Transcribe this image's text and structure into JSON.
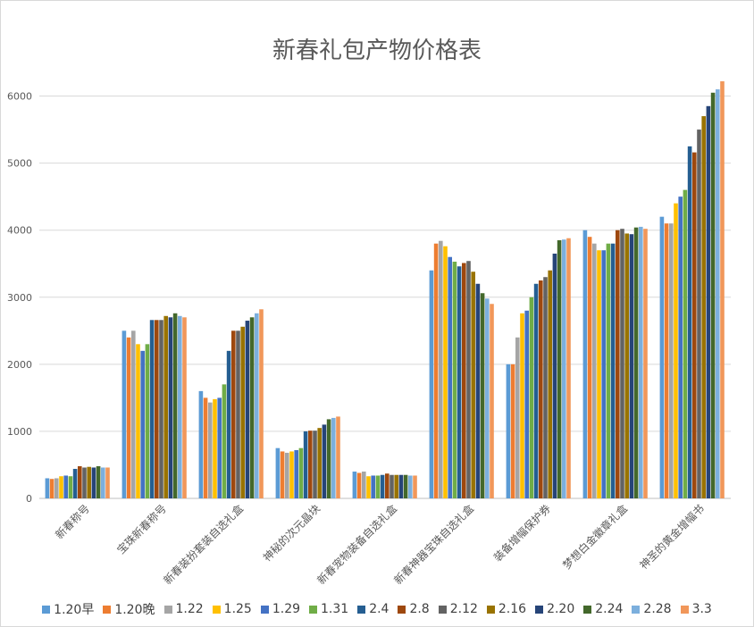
{
  "chart_data": {
    "type": "bar",
    "title": "新春礼包产物价格表",
    "xlabel": "",
    "ylabel": "",
    "ylim": [
      0,
      6500
    ],
    "yticks": [
      0,
      1000,
      2000,
      3000,
      4000,
      5000,
      6000
    ],
    "grid": true,
    "legend_position": "bottom",
    "categories": [
      "新春称号",
      "宝珠新春称号",
      "新春装扮套装自选礼盒",
      "神秘的次元晶块",
      "新春宠物装备自选礼盒",
      "新春神器宝珠自选礼盒",
      "装备增幅保护券",
      "梦想白金徽章礼盒",
      "神圣的黄金增幅书"
    ],
    "series": [
      {
        "name": "1.20早",
        "color": "#5b9bd5",
        "values": [
          300,
          2500,
          1600,
          750,
          400,
          3400,
          2000,
          4000,
          4200
        ]
      },
      {
        "name": "1.20晚",
        "color": "#ed7d31",
        "values": [
          290,
          2400,
          1500,
          700,
          380,
          3800,
          2000,
          3900,
          4100
        ]
      },
      {
        "name": "1.22",
        "color": "#a5a5a5",
        "values": [
          300,
          2500,
          1430,
          680,
          400,
          3840,
          2400,
          3800,
          4100
        ]
      },
      {
        "name": "1.25",
        "color": "#ffc000",
        "values": [
          330,
          2300,
          1480,
          700,
          330,
          3760,
          2760,
          3700,
          4400
        ]
      },
      {
        "name": "1.29",
        "color": "#4472c4",
        "values": [
          340,
          2200,
          1500,
          720,
          340,
          3600,
          2800,
          3700,
          4500
        ]
      },
      {
        "name": "1.31",
        "color": "#70ad47",
        "values": [
          330,
          2300,
          1700,
          750,
          340,
          3530,
          3000,
          3800,
          4600
        ]
      },
      {
        "name": "2.4",
        "color": "#255e91",
        "values": [
          440,
          2660,
          2200,
          1000,
          350,
          3460,
          3200,
          3800,
          5250
        ]
      },
      {
        "name": "2.8",
        "color": "#9e480e",
        "values": [
          480,
          2660,
          2500,
          1010,
          370,
          3510,
          3250,
          4000,
          5160
        ]
      },
      {
        "name": "2.12",
        "color": "#636363",
        "values": [
          460,
          2660,
          2500,
          1010,
          350,
          3540,
          3300,
          4020,
          5500
        ]
      },
      {
        "name": "2.16",
        "color": "#997300",
        "values": [
          470,
          2720,
          2560,
          1050,
          350,
          3380,
          3400,
          3950,
          5700
        ]
      },
      {
        "name": "2.20",
        "color": "#264478",
        "values": [
          460,
          2700,
          2650,
          1100,
          350,
          3200,
          3650,
          3940,
          5850
        ]
      },
      {
        "name": "2.24",
        "color": "#43682b",
        "values": [
          480,
          2760,
          2700,
          1180,
          350,
          3060,
          3850,
          4040,
          6050
        ]
      },
      {
        "name": "2.28",
        "color": "#7cafdd",
        "values": [
          460,
          2720,
          2760,
          1200,
          340,
          2980,
          3860,
          4050,
          6100
        ]
      },
      {
        "name": "3.3",
        "color": "#f1975a",
        "values": [
          460,
          2700,
          2820,
          1220,
          340,
          2900,
          3880,
          4020,
          6220
        ]
      }
    ]
  }
}
